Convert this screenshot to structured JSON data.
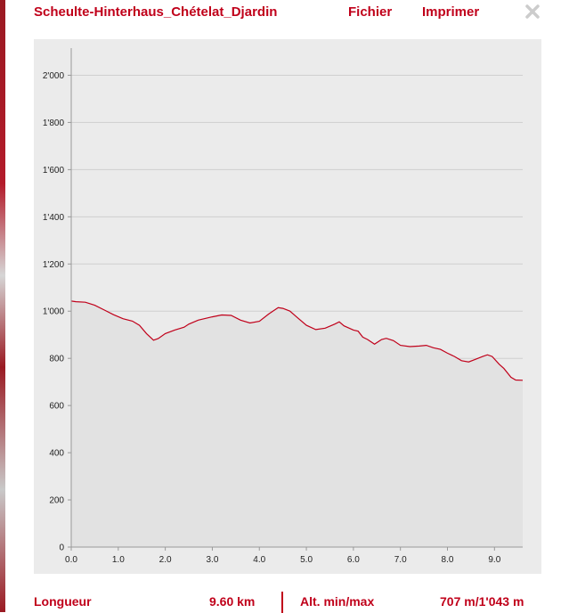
{
  "header": {
    "title": "Scheulte-Hinterhaus_Chételat_Djardin",
    "menu_fichier": "Fichier",
    "menu_imprimer": "Imprimer",
    "close_icon": "close-icon"
  },
  "colors": {
    "accent": "#c0001a",
    "chart_background": "#ebebeb",
    "area_fill": "#e2e2e2",
    "line": "#c0001a",
    "grid": "#cfcfcf"
  },
  "chart_data": {
    "type": "area",
    "title": "",
    "xlabel": "",
    "ylabel": "",
    "xlim": [
      0,
      9.6
    ],
    "ylim": [
      0,
      2100
    ],
    "grid": true,
    "x_ticks": [
      0,
      1,
      2,
      3,
      4,
      5,
      6,
      7,
      8,
      9
    ],
    "x_tick_labels": [
      "0.0",
      "1.0",
      "2.0",
      "3.0",
      "4.0",
      "5.0",
      "6.0",
      "7.0",
      "8.0",
      "9.0"
    ],
    "y_ticks": [
      0,
      200,
      400,
      600,
      800,
      1000,
      1200,
      1400,
      1600,
      1800,
      2000
    ],
    "y_tick_labels": [
      "0",
      "200",
      "400",
      "600",
      "800",
      "1'000",
      "1'200",
      "1'400",
      "1'600",
      "1'800",
      "2'000"
    ],
    "series": [
      {
        "x": [
          0,
          0.1,
          0.3,
          0.5,
          0.7,
          0.9,
          1.1,
          1.3,
          1.45,
          1.6,
          1.75,
          1.85,
          2.0,
          2.2,
          2.4,
          2.5,
          2.7,
          3.0,
          3.2,
          3.4,
          3.6,
          3.8,
          4.0,
          4.2,
          4.4,
          4.5,
          4.65,
          4.8,
          5.0,
          5.2,
          5.4,
          5.6,
          5.7,
          5.8,
          6.0,
          6.1,
          6.2,
          6.3,
          6.45,
          6.6,
          6.7,
          6.85,
          7.0,
          7.2,
          7.4,
          7.55,
          7.7,
          7.85,
          8.0,
          8.15,
          8.3,
          8.45,
          8.6,
          8.75,
          8.85,
          8.95,
          9.1,
          9.2,
          9.35,
          9.45,
          9.6
        ],
        "y": [
          1043,
          1040,
          1038,
          1025,
          1005,
          985,
          968,
          958,
          940,
          905,
          877,
          884,
          905,
          920,
          932,
          945,
          962,
          976,
          984,
          982,
          962,
          950,
          957,
          988,
          1015,
          1012,
          1000,
          974,
          940,
          922,
          928,
          945,
          955,
          938,
          920,
          915,
          890,
          880,
          860,
          880,
          885,
          875,
          855,
          850,
          852,
          855,
          845,
          838,
          822,
          808,
          790,
          785,
          796,
          808,
          815,
          808,
          775,
          757,
          720,
          708,
          707
        ]
      }
    ]
  },
  "footer": {
    "length_label": "Longueur",
    "length_value": "9.60 km",
    "alt_label": "Alt. min/max",
    "alt_value": "707 m/1'043 m"
  }
}
